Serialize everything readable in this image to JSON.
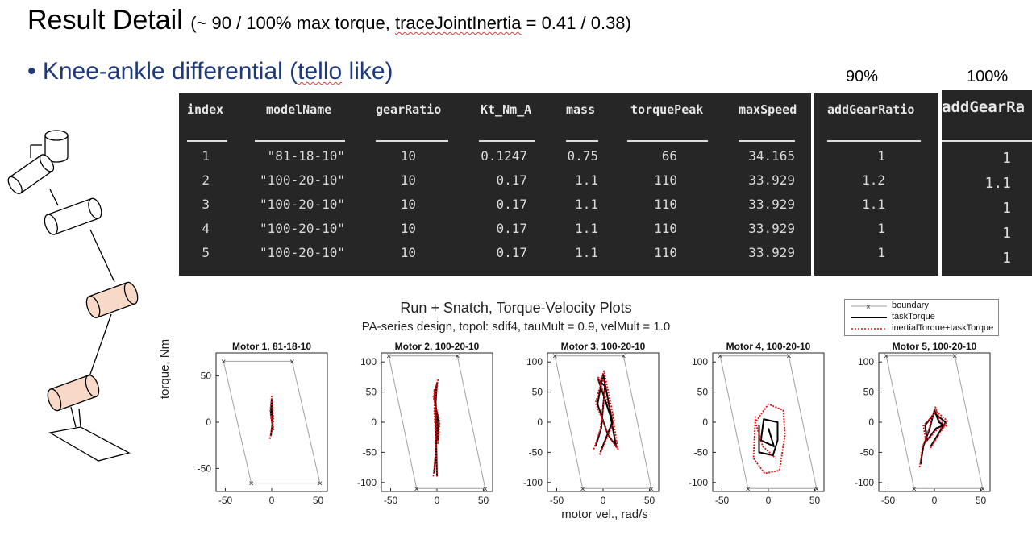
{
  "slide": {
    "title_main": "Result Detail",
    "title_sub_pre": "(~ 90 / 100% max torque, ",
    "title_sub_squig": "traceJointInertia",
    "title_sub_post": " =  0.41 / 0.38)",
    "bullet_pre": "• Knee-ankle differential (",
    "bullet_squig": "tello",
    "bullet_post": " like)",
    "label_90": "90%",
    "label_100": "100%"
  },
  "table": {
    "headers": [
      "index",
      "modelName",
      "gearRatio",
      "Kt_Nm_A",
      "mass",
      "torquePeak",
      "maxSpeed"
    ],
    "rows": [
      [
        "1",
        "\"81-18-10\"",
        "10",
        "0.1247",
        "0.75",
        "66",
        "34.165"
      ],
      [
        "2",
        "\"100-20-10\"",
        "10",
        "0.17",
        "1.1",
        "110",
        "33.929"
      ],
      [
        "3",
        "\"100-20-10\"",
        "10",
        "0.17",
        "1.1",
        "110",
        "33.929"
      ],
      [
        "4",
        "\"100-20-10\"",
        "10",
        "0.17",
        "1.1",
        "110",
        "33.929"
      ],
      [
        "5",
        "\"100-20-10\"",
        "10",
        "0.17",
        "1.1",
        "110",
        "33.929"
      ]
    ],
    "gear90_header": "addGearRatio",
    "gear90_values": [
      "1",
      "1.2",
      "1.1",
      "1",
      "1"
    ],
    "gear100_header": "addGearRa",
    "gear100_values": [
      "1",
      "1.1",
      "1",
      "1",
      "1"
    ]
  },
  "figure": {
    "title": "Run + Snatch, Torque-Velocity Plots",
    "subtitle": "PA-series design, topol: sdif4, tauMult = 0.9, velMult = 1.0",
    "ylabel": "torque, Nm",
    "xlabel": "motor vel., rad/s",
    "legend": [
      "boundary",
      "taskTorque",
      "inertialTorque+taskTorque"
    ],
    "colors": {
      "boundary": "#a0a0a0",
      "task": "#000000",
      "inertial": "#e01010"
    }
  },
  "chart_data": [
    {
      "type": "line",
      "title": "Motor 1, 81-18-10",
      "xlim": [
        -60,
        60
      ],
      "ylim": [
        -75,
        75
      ],
      "xticks": [
        -50,
        0,
        50
      ],
      "yticks": [
        -50,
        0,
        50
      ],
      "boundary": {
        "x": [
          -52,
          22,
          52,
          -22,
          -52
        ],
        "y": [
          66,
          66,
          -66,
          -66,
          66
        ]
      },
      "series": [
        {
          "name": "taskTorque",
          "x": [
            -1,
            1,
            0,
            -1,
            1,
            0,
            -0.5
          ],
          "y": [
            -15,
            0,
            25,
            10,
            -5,
            5,
            18
          ]
        },
        {
          "name": "inertialTorque+taskTorque",
          "x": [
            -2,
            2,
            0,
            -1.5,
            2,
            -1
          ],
          "y": [
            -18,
            2,
            28,
            12,
            -8,
            6
          ]
        }
      ]
    },
    {
      "type": "line",
      "title": "Motor 2, 100-20-10",
      "xlim": [
        -60,
        60
      ],
      "ylim": [
        -115,
        115
      ],
      "xticks": [
        -50,
        0,
        50
      ],
      "yticks": [
        -100,
        -50,
        0,
        50,
        100
      ],
      "boundary": {
        "x": [
          -52,
          22,
          52,
          -22,
          -52
        ],
        "y": [
          110,
          110,
          -110,
          -110,
          110
        ]
      },
      "series": [
        {
          "name": "taskTorque",
          "x": [
            -3,
            -1,
            -2,
            0,
            -3,
            2,
            1,
            -2,
            0
          ],
          "y": [
            -85,
            -40,
            20,
            65,
            40,
            0,
            -30,
            50,
            -90
          ]
        },
        {
          "name": "inertialTorque+taskTorque",
          "x": [
            -4,
            -1,
            -3,
            1,
            -4,
            3,
            1,
            -3,
            0
          ],
          "y": [
            -90,
            -45,
            25,
            70,
            42,
            0,
            -35,
            55,
            -92
          ]
        }
      ]
    },
    {
      "type": "line",
      "title": "Motor 3, 100-20-10",
      "xlim": [
        -60,
        60
      ],
      "ylim": [
        -115,
        115
      ],
      "xticks": [
        -50,
        0,
        50
      ],
      "yticks": [
        -100,
        -50,
        0,
        50,
        100
      ],
      "boundary": {
        "x": [
          -52,
          22,
          52,
          -22,
          -52
        ],
        "y": [
          110,
          110,
          -110,
          -110,
          110
        ]
      },
      "series": [
        {
          "name": "taskTorque",
          "x": [
            -8,
            -2,
            2,
            -5,
            8,
            14,
            5,
            -6,
            0,
            10,
            -3
          ],
          "y": [
            -40,
            -10,
            60,
            70,
            10,
            -40,
            -20,
            30,
            80,
            0,
            -50
          ]
        },
        {
          "name": "inertialTorque+taskTorque",
          "x": [
            -10,
            -3,
            3,
            -6,
            10,
            16,
            6,
            -8,
            1,
            12,
            -4
          ],
          "y": [
            -45,
            -12,
            65,
            75,
            12,
            -45,
            -22,
            32,
            85,
            2,
            -55
          ]
        }
      ]
    },
    {
      "type": "line",
      "title": "Motor 4, 100-20-10",
      "xlim": [
        -60,
        60
      ],
      "ylim": [
        -115,
        115
      ],
      "xticks": [
        -50,
        0,
        50
      ],
      "yticks": [
        -100,
        -50,
        0,
        50,
        100
      ],
      "boundary": {
        "x": [
          -52,
          22,
          52,
          -22,
          -52
        ],
        "y": [
          110,
          110,
          -110,
          -110,
          110
        ]
      },
      "series": [
        {
          "name": "taskTorque",
          "x": [
            -10,
            -10,
            5,
            10,
            10,
            -5,
            -8,
            6,
            0
          ],
          "y": [
            -5,
            -50,
            -55,
            -30,
            0,
            5,
            -30,
            -40,
            -10
          ]
        },
        {
          "name": "inertialTorque+taskTorque",
          "x": [
            -14,
            -16,
            -4,
            12,
            18,
            16,
            0,
            -14,
            -6,
            8
          ],
          "y": [
            10,
            -60,
            -85,
            -80,
            -20,
            20,
            30,
            0,
            -40,
            -60
          ]
        }
      ]
    },
    {
      "type": "line",
      "title": "Motor 5, 100-20-10",
      "xlim": [
        -60,
        60
      ],
      "ylim": [
        -115,
        115
      ],
      "xticks": [
        -50,
        0,
        50
      ],
      "yticks": [
        -100,
        -50,
        0,
        50,
        100
      ],
      "boundary": {
        "x": [
          -52,
          22,
          52,
          -22,
          -52
        ],
        "y": [
          110,
          110,
          -110,
          -110,
          110
        ]
      },
      "series": [
        {
          "name": "taskTorque",
          "x": [
            -15,
            -12,
            -5,
            0,
            5,
            10,
            2,
            -8,
            -10,
            0,
            12,
            -4
          ],
          "y": [
            -70,
            -40,
            -10,
            20,
            0,
            -5,
            -10,
            -30,
            -5,
            15,
            0,
            -40
          ]
        },
        {
          "name": "inertialTorque+taskTorque",
          "x": [
            -16,
            -13,
            -6,
            1,
            6,
            13,
            3,
            -9,
            -12,
            2,
            14,
            -5
          ],
          "y": [
            -75,
            -42,
            -12,
            25,
            2,
            -6,
            -12,
            -32,
            -6,
            18,
            2,
            -45
          ]
        }
      ]
    }
  ]
}
